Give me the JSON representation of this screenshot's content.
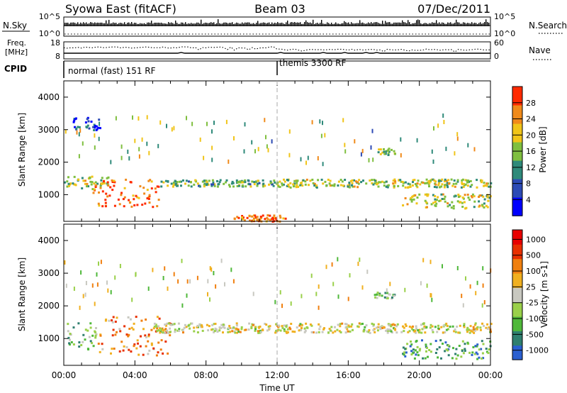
{
  "header": {
    "station": "Syowa East (fitACF)",
    "beam": "Beam 03",
    "date": "07/Dec/2011"
  },
  "nsky_panel": {
    "left_label": "N.Sky",
    "right_label": "N.Search",
    "left_ticks": [
      "10^5",
      "10^0"
    ],
    "right_ticks": [
      "10^5",
      "10^0"
    ]
  },
  "freq_panel": {
    "left_label_line1": "Freq.",
    "left_label_line2": "[MHz]",
    "left_ticks": [
      "18",
      "8"
    ],
    "right_label": "Nave",
    "right_ticks": [
      "60",
      "0"
    ]
  },
  "cpid_panel": {
    "label": "CPID",
    "modes": [
      {
        "label": "normal (fast) 151 RF",
        "start_hour": 0
      },
      {
        "label": "themis 3300 RF",
        "start_hour": 12
      }
    ]
  },
  "chart_data": [
    {
      "type": "heatmap",
      "name": "power",
      "ylabel": "Slant Range [km]",
      "xlabel": "",
      "xlim_hours": [
        0,
        24
      ],
      "ylim_km": [
        180,
        4500
      ],
      "y_ticks": [
        1000,
        2000,
        3000,
        4000
      ],
      "y_tick_labels": [
        "1000",
        "2000",
        "3000",
        "4000"
      ],
      "colorbar_label": "Power [dB]",
      "colorbar_ticks": [
        "4",
        "8",
        "12",
        "16",
        "20",
        "24",
        "28"
      ],
      "colorbar_colors": [
        "#0000ff",
        "#2c4ab5",
        "#2f8a7a",
        "#7fbf3f",
        "#f0c419",
        "#f08a1a",
        "#ff2a00"
      ],
      "features": [
        {
          "start_h": 0.0,
          "end_h": 2.6,
          "range_low": 1200,
          "range_high": 1600,
          "level": 0.55
        },
        {
          "start_h": 1.6,
          "end_h": 5.4,
          "range_low": 650,
          "range_high": 1500,
          "level": 0.92
        },
        {
          "start_h": 5.4,
          "end_h": 12.0,
          "range_low": 1280,
          "range_high": 1480,
          "level": 0.45
        },
        {
          "start_h": 12.0,
          "end_h": 24.0,
          "range_low": 1250,
          "range_high": 1500,
          "level": 0.55
        },
        {
          "start_h": 19.0,
          "end_h": 24.0,
          "range_low": 600,
          "range_high": 1050,
          "level": 0.6
        },
        {
          "start_h": 17.5,
          "end_h": 18.6,
          "range_low": 2250,
          "range_high": 2450,
          "level": 0.5
        },
        {
          "start_h": 9.5,
          "end_h": 12.5,
          "range_low": 200,
          "range_high": 400,
          "level": 0.9
        },
        {
          "start_h": 0.5,
          "end_h": 2.0,
          "range_low": 3000,
          "range_high": 3400,
          "level": 0.15
        }
      ]
    },
    {
      "type": "heatmap",
      "name": "velocity",
      "ylabel": "Slant Range [km]",
      "xlabel": "Time UT",
      "xlim_hours": [
        0,
        24
      ],
      "x_ticks": [
        0,
        4,
        8,
        12,
        16,
        20,
        24
      ],
      "x_tick_labels": [
        "00:00",
        "04:00",
        "08:00",
        "12:00",
        "16:00",
        "20:00",
        "00:00"
      ],
      "ylim_km": [
        180,
        4500
      ],
      "y_ticks": [
        1000,
        2000,
        3000,
        4000
      ],
      "y_tick_labels": [
        "1000",
        "2000",
        "3000",
        "4000"
      ],
      "colorbar_label": "Velocity [m s-1]",
      "colorbar_ticks": [
        "1000",
        "500",
        "100",
        "25",
        "-25",
        "-100",
        "-500",
        "-1000"
      ],
      "colorbar_colors": [
        "#2a5fd0",
        "#2f7f6f",
        "#4fb83a",
        "#9ad04a",
        "#c8c8c0",
        "#f0b020",
        "#f08010",
        "#e83000",
        "#e80000"
      ],
      "features": [
        {
          "start_h": 0.0,
          "end_h": 1.8,
          "range_low": 700,
          "range_high": 1500,
          "level": 0.3
        },
        {
          "start_h": 1.8,
          "end_h": 6.0,
          "range_low": 500,
          "range_high": 1700,
          "level": 0.72
        },
        {
          "start_h": 5.0,
          "end_h": 24.0,
          "range_low": 1200,
          "range_high": 1500,
          "level": 0.5
        },
        {
          "start_h": 19.0,
          "end_h": 24.0,
          "range_low": 400,
          "range_high": 1000,
          "level": 0.2
        },
        {
          "start_h": 17.4,
          "end_h": 18.6,
          "range_low": 2250,
          "range_high": 2450,
          "level": 0.32
        }
      ]
    }
  ]
}
